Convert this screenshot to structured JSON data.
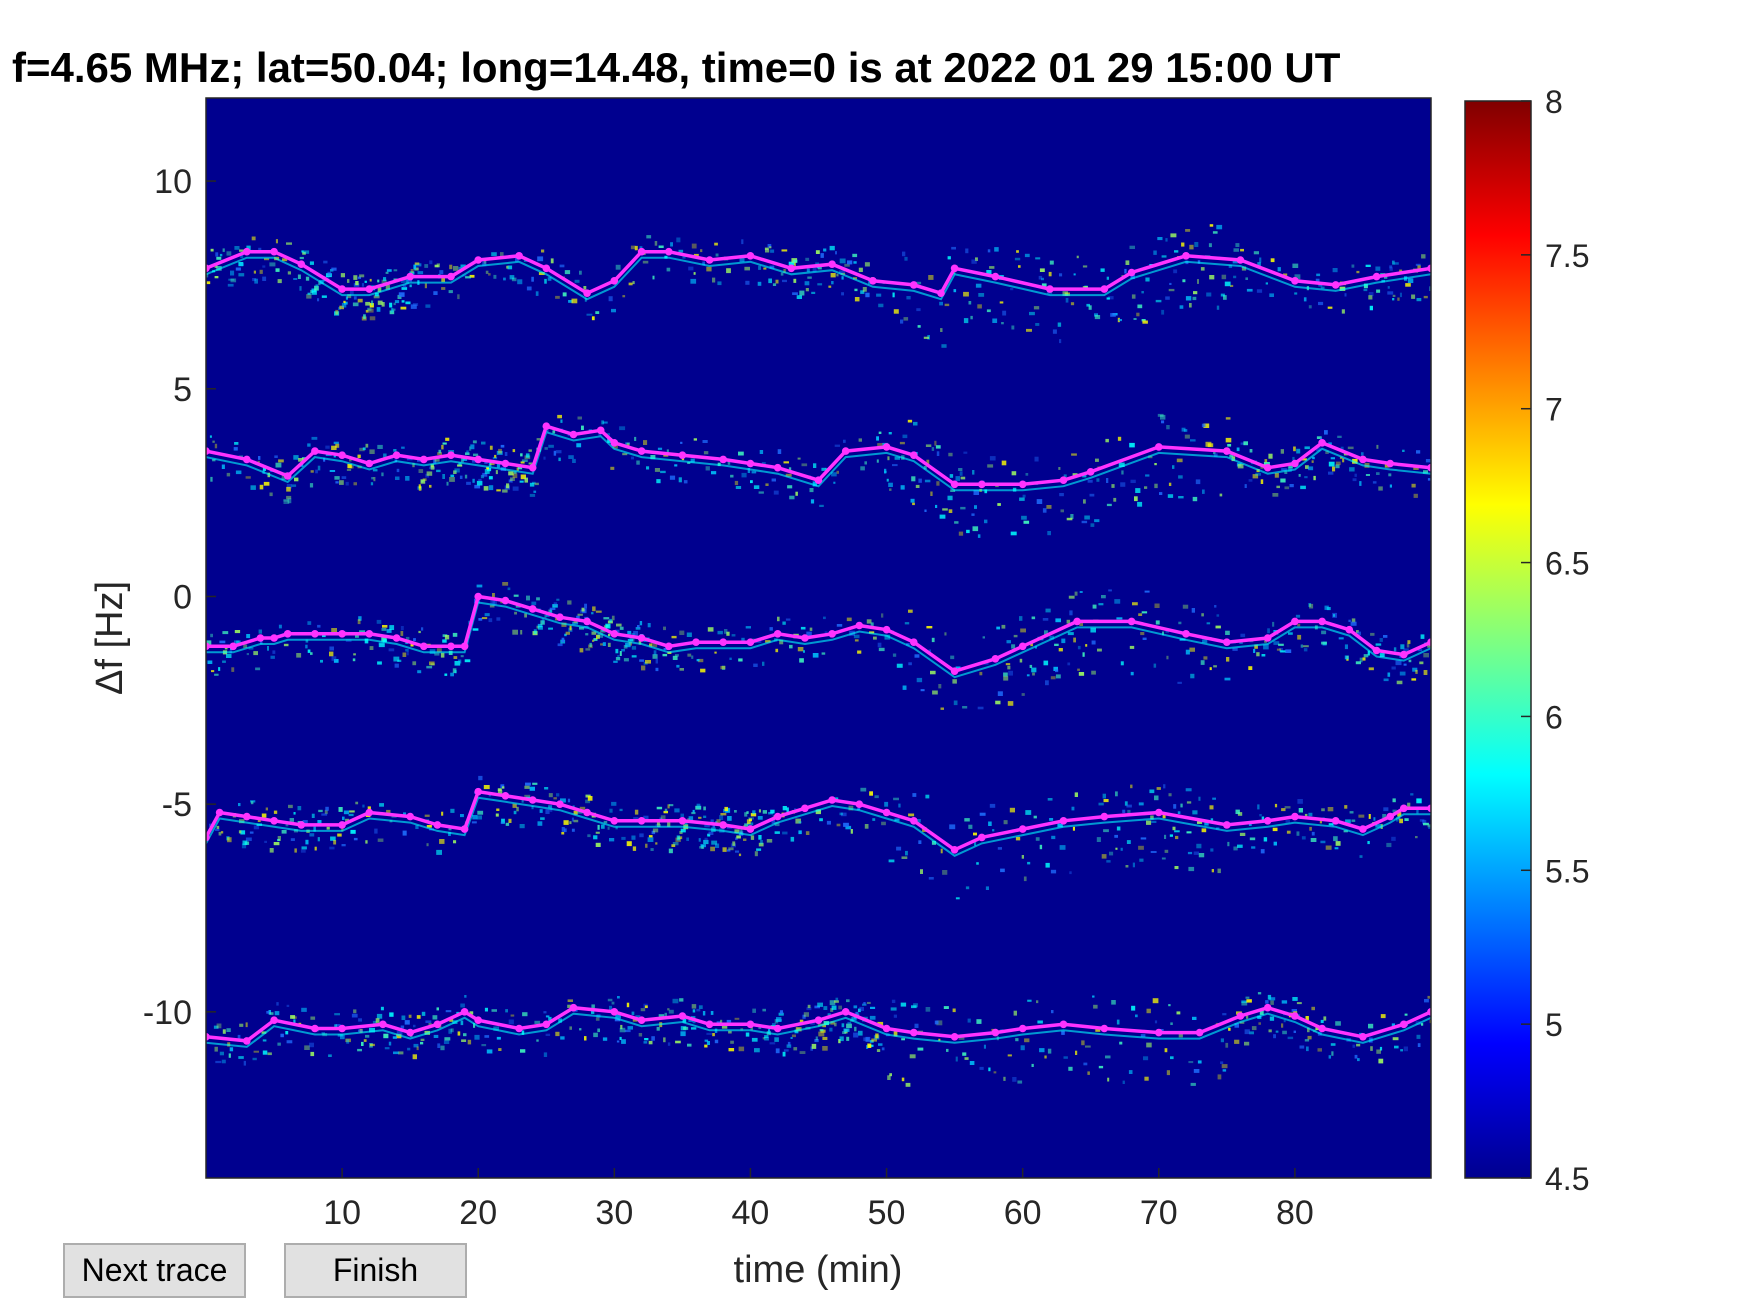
{
  "chart_data": {
    "type": "heatmap",
    "title": "f=4.65 MHz;  lat=50.04; long=14.48, time=0 is at 2022 01 29 15:00 UT",
    "xlabel": "time (min)",
    "ylabel": "Δf [Hz]",
    "xlim": [
      0,
      90
    ],
    "ylim": [
      -14,
      12
    ],
    "xticks": [
      10,
      20,
      30,
      40,
      50,
      60,
      70,
      80
    ],
    "xtick_labels": [
      "10",
      "20",
      "30",
      "40",
      "50",
      "60",
      "70",
      "80"
    ],
    "yticks": [
      10,
      5,
      0,
      -5,
      -10
    ],
    "ytick_labels": [
      "10",
      "5",
      "0",
      "-5",
      "-10"
    ],
    "colorbar": {
      "range": [
        4.5,
        8
      ],
      "ticks": [
        8,
        7.5,
        7,
        6.5,
        6,
        5.5,
        5,
        4.5
      ],
      "tick_labels": [
        "8",
        "7.5",
        "7",
        "6.5",
        "6",
        "5.5",
        "5",
        "4.5"
      ],
      "colormap": "jet"
    },
    "background_color": "#00008f",
    "trace_color": "#ff33ff",
    "traces": [
      {
        "x": [
          0,
          3,
          5,
          7,
          10,
          12,
          15,
          18,
          20,
          23,
          25,
          28,
          30,
          32,
          34,
          37,
          40,
          43,
          46,
          49,
          52,
          54,
          55,
          58,
          62,
          66,
          68,
          72,
          76,
          80,
          83,
          86,
          90
        ],
        "y": [
          7.9,
          8.3,
          8.3,
          8.0,
          7.4,
          7.4,
          7.7,
          7.7,
          8.1,
          8.2,
          7.9,
          7.3,
          7.6,
          8.3,
          8.3,
          8.1,
          8.2,
          7.9,
          8.0,
          7.6,
          7.5,
          7.3,
          7.9,
          7.7,
          7.4,
          7.4,
          7.8,
          8.2,
          8.1,
          7.6,
          7.5,
          7.7,
          7.9
        ]
      },
      {
        "x": [
          0,
          3,
          6,
          8,
          10,
          12,
          14,
          16,
          18,
          20,
          22,
          24,
          25,
          27,
          29,
          30,
          32,
          35,
          38,
          40,
          42,
          45,
          47,
          50,
          52,
          55,
          57,
          60,
          63,
          65,
          70,
          75,
          78,
          80,
          82,
          85,
          87,
          90
        ],
        "y": [
          3.5,
          3.3,
          2.9,
          3.5,
          3.4,
          3.2,
          3.4,
          3.3,
          3.4,
          3.3,
          3.2,
          3.1,
          4.1,
          3.9,
          4.0,
          3.7,
          3.5,
          3.4,
          3.3,
          3.2,
          3.1,
          2.8,
          3.5,
          3.6,
          3.4,
          2.7,
          2.7,
          2.7,
          2.8,
          3.0,
          3.6,
          3.5,
          3.1,
          3.2,
          3.7,
          3.3,
          3.2,
          3.1
        ]
      },
      {
        "x": [
          0,
          2,
          4,
          5,
          6,
          8,
          10,
          12,
          14,
          16,
          18,
          19,
          20,
          22,
          24,
          26,
          28,
          30,
          32,
          34,
          36,
          38,
          40,
          42,
          44,
          46,
          48,
          50,
          52,
          55,
          58,
          60,
          64,
          68,
          72,
          75,
          78,
          80,
          82,
          84,
          86,
          88,
          90
        ],
        "y": [
          -1.2,
          -1.2,
          -1.0,
          -1.0,
          -0.9,
          -0.9,
          -0.9,
          -0.9,
          -1.0,
          -1.2,
          -1.2,
          -1.2,
          0.0,
          -0.1,
          -0.3,
          -0.5,
          -0.6,
          -0.9,
          -1.0,
          -1.2,
          -1.1,
          -1.1,
          -1.1,
          -0.9,
          -1.0,
          -0.9,
          -0.7,
          -0.8,
          -1.1,
          -1.8,
          -1.5,
          -1.2,
          -0.6,
          -0.6,
          -0.9,
          -1.1,
          -1.0,
          -0.6,
          -0.6,
          -0.8,
          -1.3,
          -1.4,
          -1.1
        ]
      },
      {
        "x": [
          0,
          1,
          3,
          5,
          7,
          10,
          12,
          15,
          17,
          19,
          20,
          22,
          24,
          26,
          28,
          30,
          32,
          35,
          38,
          40,
          42,
          44,
          46,
          48,
          50,
          52,
          55,
          57,
          60,
          63,
          66,
          70,
          75,
          78,
          80,
          83,
          85,
          87,
          88,
          90
        ],
        "y": [
          -5.8,
          -5.2,
          -5.3,
          -5.4,
          -5.5,
          -5.5,
          -5.2,
          -5.3,
          -5.5,
          -5.6,
          -4.7,
          -4.8,
          -4.9,
          -5.0,
          -5.2,
          -5.4,
          -5.4,
          -5.4,
          -5.5,
          -5.6,
          -5.3,
          -5.1,
          -4.9,
          -5.0,
          -5.2,
          -5.4,
          -6.1,
          -5.8,
          -5.6,
          -5.4,
          -5.3,
          -5.2,
          -5.5,
          -5.4,
          -5.3,
          -5.4,
          -5.6,
          -5.3,
          -5.1,
          -5.1
        ]
      },
      {
        "x": [
          0,
          3,
          5,
          8,
          10,
          13,
          15,
          17,
          19,
          20,
          23,
          25,
          27,
          30,
          32,
          35,
          37,
          40,
          42,
          45,
          47,
          50,
          52,
          55,
          58,
          60,
          63,
          66,
          70,
          73,
          76,
          78,
          80,
          82,
          85,
          88,
          90
        ],
        "y": [
          -10.6,
          -10.7,
          -10.2,
          -10.4,
          -10.4,
          -10.3,
          -10.5,
          -10.3,
          -10.0,
          -10.2,
          -10.4,
          -10.3,
          -9.9,
          -10.0,
          -10.2,
          -10.1,
          -10.3,
          -10.3,
          -10.4,
          -10.2,
          -10.0,
          -10.4,
          -10.5,
          -10.6,
          -10.5,
          -10.4,
          -10.3,
          -10.4,
          -10.5,
          -10.5,
          -10.1,
          -9.9,
          -10.1,
          -10.4,
          -10.6,
          -10.3,
          -10.0
        ]
      }
    ]
  },
  "buttons": {
    "next_trace": "Next trace",
    "finish": "Finish"
  }
}
